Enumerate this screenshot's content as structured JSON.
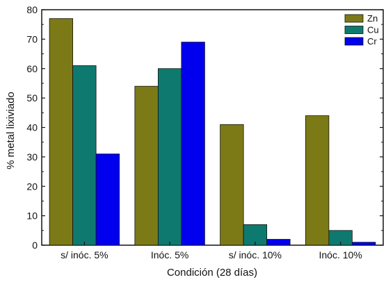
{
  "chart_data": {
    "type": "bar",
    "title": "",
    "xlabel": "Condición (28 días)",
    "ylabel": "% metal lixiviado",
    "categories": [
      "s/ inóc. 5%",
      "Inóc. 5%",
      "s/ inóc. 10%",
      "Inóc. 10%"
    ],
    "ylim": [
      0,
      80
    ],
    "yticks": [
      0,
      10,
      20,
      30,
      40,
      50,
      60,
      70,
      80
    ],
    "grid": false,
    "legend_position": "top-right",
    "series": [
      {
        "name": "Zn",
        "color": "#7c7a17",
        "values": [
          77,
          54,
          41,
          44
        ]
      },
      {
        "name": "Cu",
        "color": "#0e7a6f",
        "values": [
          61,
          60,
          7,
          5
        ]
      },
      {
        "name": "Cr",
        "color": "#0000ee",
        "values": [
          31,
          69,
          2,
          1
        ]
      }
    ]
  }
}
